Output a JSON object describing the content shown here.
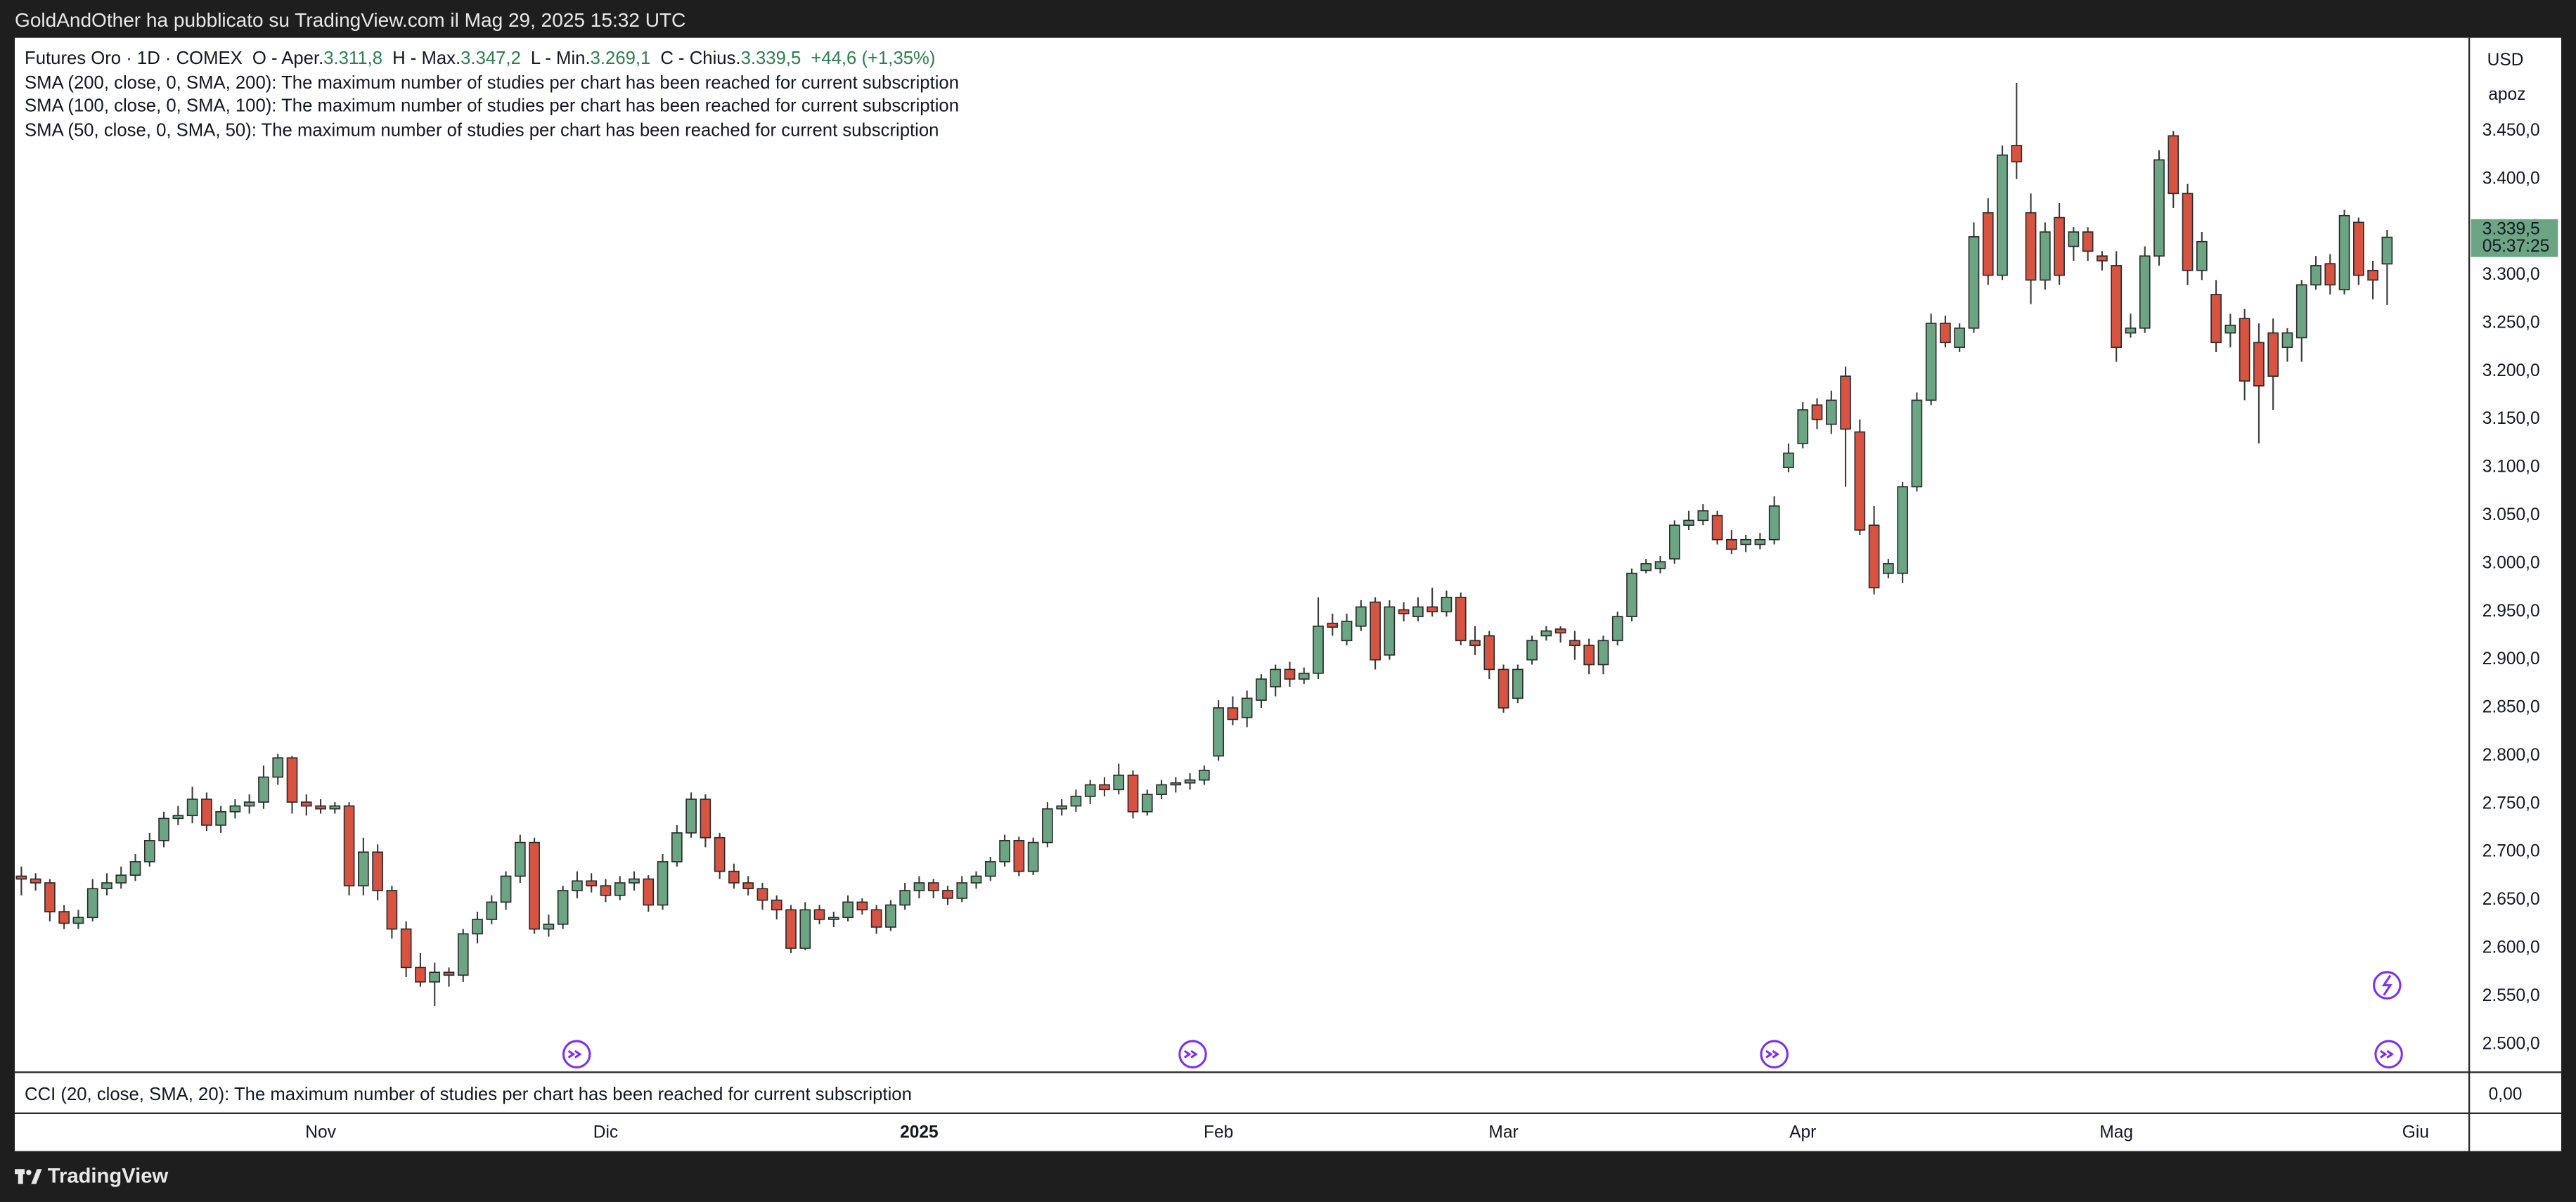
{
  "top_bar": {
    "text": "GoldAndOther ha pubblicato su TradingView.com il Mag 29, 2025 15:32 UTC"
  },
  "chart_data": {
    "type": "candlestick",
    "header": {
      "symbol": "Futures Oro · 1D · COMEX",
      "open_label": "O - Aper.",
      "open": "3.311,8",
      "high_label": "H - Max.",
      "high": "3.347,2",
      "low_label": "L - Min.",
      "low": "3.269,1",
      "close_label": "C - Chius.",
      "close": "3.339,5",
      "change": "+44,6 (+1,35%)"
    },
    "studies": [
      "SMA (200, close, 0, SMA, 200): The maximum number of studies per chart has been reached for current subscription",
      "SMA (100, close, 0, SMA, 100): The maximum number of studies per chart has been reached for current subscription",
      "SMA (50, close, 0, SMA, 50): The maximum number of studies per chart has been reached for current subscription"
    ],
    "up_color": "#6ba583",
    "down_color": "#d75442",
    "ohlc": [
      [
        2675,
        2685,
        2655,
        2672
      ],
      [
        2672,
        2678,
        2660,
        2668
      ],
      [
        2668,
        2672,
        2628,
        2638
      ],
      [
        2638,
        2645,
        2620,
        2626
      ],
      [
        2626,
        2640,
        2620,
        2632
      ],
      [
        2632,
        2672,
        2628,
        2662
      ],
      [
        2662,
        2678,
        2655,
        2668
      ],
      [
        2668,
        2685,
        2662,
        2676
      ],
      [
        2676,
        2698,
        2670,
        2690
      ],
      [
        2690,
        2720,
        2685,
        2712
      ],
      [
        2712,
        2742,
        2705,
        2735
      ],
      [
        2735,
        2748,
        2728,
        2738
      ],
      [
        2738,
        2768,
        2730,
        2755
      ],
      [
        2755,
        2762,
        2722,
        2728
      ],
      [
        2728,
        2748,
        2720,
        2742
      ],
      [
        2742,
        2755,
        2735,
        2748
      ],
      [
        2748,
        2760,
        2740,
        2752
      ],
      [
        2752,
        2790,
        2745,
        2778
      ],
      [
        2778,
        2802,
        2770,
        2798
      ],
      [
        2798,
        2800,
        2740,
        2752
      ],
      [
        2752,
        2760,
        2738,
        2748
      ],
      [
        2748,
        2755,
        2740,
        2745
      ],
      [
        2745,
        2752,
        2740,
        2748
      ],
      [
        2748,
        2752,
        2655,
        2665
      ],
      [
        2665,
        2715,
        2655,
        2700
      ],
      [
        2700,
        2708,
        2650,
        2660
      ],
      [
        2660,
        2665,
        2610,
        2620
      ],
      [
        2620,
        2628,
        2570,
        2580
      ],
      [
        2580,
        2595,
        2560,
        2565
      ],
      [
        2565,
        2585,
        2540,
        2575
      ],
      [
        2575,
        2580,
        2560,
        2572
      ],
      [
        2572,
        2620,
        2565,
        2615
      ],
      [
        2615,
        2638,
        2605,
        2630
      ],
      [
        2630,
        2655,
        2625,
        2648
      ],
      [
        2648,
        2680,
        2640,
        2675
      ],
      [
        2675,
        2718,
        2668,
        2710
      ],
      [
        2710,
        2715,
        2615,
        2620
      ],
      [
        2620,
        2635,
        2612,
        2625
      ],
      [
        2625,
        2665,
        2620,
        2660
      ],
      [
        2660,
        2680,
        2652,
        2670
      ],
      [
        2670,
        2678,
        2658,
        2665
      ],
      [
        2665,
        2672,
        2648,
        2655
      ],
      [
        2655,
        2675,
        2650,
        2668
      ],
      [
        2668,
        2680,
        2660,
        2672
      ],
      [
        2672,
        2676,
        2638,
        2645
      ],
      [
        2645,
        2698,
        2640,
        2690
      ],
      [
        2690,
        2728,
        2685,
        2720
      ],
      [
        2720,
        2762,
        2715,
        2755
      ],
      [
        2755,
        2760,
        2705,
        2715
      ],
      [
        2715,
        2720,
        2672,
        2680
      ],
      [
        2680,
        2688,
        2662,
        2668
      ],
      [
        2668,
        2675,
        2655,
        2662
      ],
      [
        2662,
        2668,
        2640,
        2650
      ],
      [
        2650,
        2655,
        2630,
        2640
      ],
      [
        2640,
        2645,
        2595,
        2600
      ],
      [
        2600,
        2648,
        2598,
        2640
      ],
      [
        2640,
        2645,
        2625,
        2630
      ],
      [
        2630,
        2638,
        2622,
        2632
      ],
      [
        2632,
        2655,
        2628,
        2648
      ],
      [
        2648,
        2652,
        2635,
        2640
      ],
      [
        2640,
        2645,
        2615,
        2622
      ],
      [
        2622,
        2650,
        2618,
        2645
      ],
      [
        2645,
        2668,
        2640,
        2660
      ],
      [
        2660,
        2675,
        2652,
        2668
      ],
      [
        2668,
        2672,
        2652,
        2660
      ],
      [
        2660,
        2665,
        2645,
        2652
      ],
      [
        2652,
        2675,
        2648,
        2668
      ],
      [
        2668,
        2680,
        2662,
        2675
      ],
      [
        2675,
        2695,
        2670,
        2690
      ],
      [
        2690,
        2718,
        2685,
        2712
      ],
      [
        2712,
        2716,
        2675,
        2680
      ],
      [
        2680,
        2715,
        2676,
        2710
      ],
      [
        2710,
        2752,
        2705,
        2745
      ],
      [
        2745,
        2755,
        2738,
        2748
      ],
      [
        2748,
        2765,
        2742,
        2758
      ],
      [
        2758,
        2775,
        2750,
        2770
      ],
      [
        2770,
        2778,
        2758,
        2765
      ],
      [
        2765,
        2792,
        2760,
        2780
      ],
      [
        2780,
        2785,
        2735,
        2742
      ],
      [
        2742,
        2765,
        2738,
        2760
      ],
      [
        2760,
        2775,
        2755,
        2770
      ],
      [
        2770,
        2778,
        2762,
        2772
      ],
      [
        2772,
        2782,
        2765,
        2775
      ],
      [
        2775,
        2790,
        2770,
        2785
      ],
      [
        2800,
        2858,
        2795,
        2850
      ],
      [
        2850,
        2862,
        2832,
        2838
      ],
      [
        2840,
        2868,
        2830,
        2860
      ],
      [
        2858,
        2885,
        2850,
        2880
      ],
      [
        2872,
        2895,
        2862,
        2890
      ],
      [
        2890,
        2898,
        2872,
        2880
      ],
      [
        2880,
        2892,
        2875,
        2886
      ],
      [
        2886,
        2965,
        2880,
        2935
      ],
      [
        2938,
        2948,
        2925,
        2934
      ],
      [
        2920,
        2948,
        2915,
        2940
      ],
      [
        2935,
        2962,
        2930,
        2955
      ],
      [
        2960,
        2965,
        2890,
        2900
      ],
      [
        2905,
        2962,
        2900,
        2955
      ],
      [
        2952,
        2960,
        2940,
        2948
      ],
      [
        2945,
        2965,
        2940,
        2955
      ],
      [
        2955,
        2975,
        2945,
        2950
      ],
      [
        2950,
        2972,
        2945,
        2965
      ],
      [
        2965,
        2970,
        2915,
        2920
      ],
      [
        2920,
        2935,
        2905,
        2915
      ],
      [
        2925,
        2930,
        2880,
        2890
      ],
      [
        2890,
        2895,
        2845,
        2850
      ],
      [
        2860,
        2895,
        2855,
        2890
      ],
      [
        2900,
        2925,
        2895,
        2920
      ],
      [
        2925,
        2935,
        2920,
        2930
      ],
      [
        2932,
        2935,
        2918,
        2928
      ],
      [
        2920,
        2930,
        2900,
        2915
      ],
      [
        2915,
        2922,
        2885,
        2895
      ],
      [
        2895,
        2925,
        2885,
        2920
      ],
      [
        2920,
        2950,
        2915,
        2945
      ],
      [
        2945,
        2995,
        2940,
        2990
      ],
      [
        2993,
        3005,
        2990,
        3000
      ],
      [
        2995,
        3008,
        2990,
        3002
      ],
      [
        3005,
        3045,
        3000,
        3040
      ],
      [
        3040,
        3055,
        3035,
        3045
      ],
      [
        3045,
        3062,
        3040,
        3055
      ],
      [
        3050,
        3055,
        3020,
        3025
      ],
      [
        3025,
        3035,
        3010,
        3015
      ],
      [
        3020,
        3030,
        3012,
        3025
      ],
      [
        3020,
        3032,
        3015,
        3025
      ],
      [
        3025,
        3070,
        3020,
        3060
      ],
      [
        3100,
        3125,
        3095,
        3115
      ],
      [
        3125,
        3168,
        3120,
        3160
      ],
      [
        3165,
        3172,
        3140,
        3150
      ],
      [
        3145,
        3180,
        3135,
        3170
      ],
      [
        3195,
        3205,
        3080,
        3140
      ],
      [
        3137,
        3150,
        3030,
        3035
      ],
      [
        3040,
        3060,
        2968,
        2975
      ],
      [
        2990,
        3005,
        2985,
        3000
      ],
      [
        2990,
        3085,
        2980,
        3080
      ],
      [
        3080,
        3178,
        3075,
        3170
      ],
      [
        3170,
        3260,
        3165,
        3250
      ],
      [
        3250,
        3258,
        3225,
        3230
      ],
      [
        3225,
        3250,
        3220,
        3245
      ],
      [
        3245,
        3355,
        3240,
        3340
      ],
      [
        3365,
        3380,
        3290,
        3300
      ],
      [
        3300,
        3435,
        3295,
        3425
      ],
      [
        3435,
        3500,
        3400,
        3418
      ],
      [
        3365,
        3385,
        3270,
        3295
      ],
      [
        3295,
        3355,
        3285,
        3345
      ],
      [
        3360,
        3375,
        3290,
        3300
      ],
      [
        3330,
        3350,
        3315,
        3345
      ],
      [
        3345,
        3350,
        3315,
        3325
      ],
      [
        3320,
        3325,
        3305,
        3315
      ],
      [
        3310,
        3325,
        3210,
        3225
      ],
      [
        3240,
        3260,
        3235,
        3245
      ],
      [
        3245,
        3330,
        3240,
        3320
      ],
      [
        3320,
        3430,
        3310,
        3420
      ],
      [
        3445,
        3450,
        3370,
        3385
      ],
      [
        3385,
        3395,
        3290,
        3305
      ],
      [
        3305,
        3345,
        3295,
        3335
      ],
      [
        3280,
        3295,
        3220,
        3230
      ],
      [
        3240,
        3260,
        3225,
        3248
      ],
      [
        3255,
        3265,
        3170,
        3190
      ],
      [
        3230,
        3250,
        3125,
        3185
      ],
      [
        3240,
        3255,
        3160,
        3195
      ],
      [
        3225,
        3245,
        3210,
        3240
      ],
      [
        3235,
        3295,
        3210,
        3290
      ],
      [
        3290,
        3320,
        3285,
        3310
      ],
      [
        3312,
        3322,
        3280,
        3290
      ],
      [
        3285,
        3368,
        3280,
        3362
      ],
      [
        3355,
        3360,
        3290,
        3300
      ],
      [
        3305,
        3315,
        3275,
        3295
      ],
      [
        3311.8,
        3347.2,
        3269.1,
        3339.5
      ]
    ],
    "ylim": [
      2471,
      3547
    ],
    "yticks": [
      {
        "value": 2500,
        "label": "2.500,0"
      },
      {
        "value": 2550,
        "label": "2.550,0"
      },
      {
        "value": 2600,
        "label": "2.600,0"
      },
      {
        "value": 2650,
        "label": "2.650,0"
      },
      {
        "value": 2700,
        "label": "2.700,0"
      },
      {
        "value": 2750,
        "label": "2.750,0"
      },
      {
        "value": 2800,
        "label": "2.800,0"
      },
      {
        "value": 2850,
        "label": "2.850,0"
      },
      {
        "value": 2900,
        "label": "2.900,0"
      },
      {
        "value": 2950,
        "label": "2.950,0"
      },
      {
        "value": 3000,
        "label": "3.000,0"
      },
      {
        "value": 3050,
        "label": "3.050,0"
      },
      {
        "value": 3100,
        "label": "3.100,0"
      },
      {
        "value": 3150,
        "label": "3.150,0"
      },
      {
        "value": 3200,
        "label": "3.200,0"
      },
      {
        "value": 3250,
        "label": "3.250,0"
      },
      {
        "value": 3300,
        "label": "3.300,0"
      },
      {
        "value": 3350,
        "label": "3.350,0"
      },
      {
        "value": 3400,
        "label": "3.400,0"
      },
      {
        "value": 3450,
        "label": "3.450,0"
      }
    ],
    "xlim": [
      -0.46,
      171.76
    ],
    "xticks": [
      {
        "value": 21,
        "label": "Nov"
      },
      {
        "value": 41,
        "label": "Dic"
      },
      {
        "value": 63,
        "label": "2025"
      },
      {
        "value": 84,
        "label": "Feb"
      },
      {
        "value": 104,
        "label": "Mar"
      },
      {
        "value": 125,
        "label": "Apr"
      },
      {
        "value": 147,
        "label": "Mag"
      },
      {
        "value": 168,
        "label": "Giu"
      }
    ],
    "currency": "USD",
    "scale_note": "apoz",
    "last_price": {
      "label": "3.339,5",
      "countdown": "05:37:25"
    },
    "cci": {
      "text": "CCI (20, close, SMA, 20): The maximum number of studies per chart has been reached for current subscription",
      "tick": "0,00"
    }
  },
  "footer": {
    "brand": "TradingView"
  }
}
